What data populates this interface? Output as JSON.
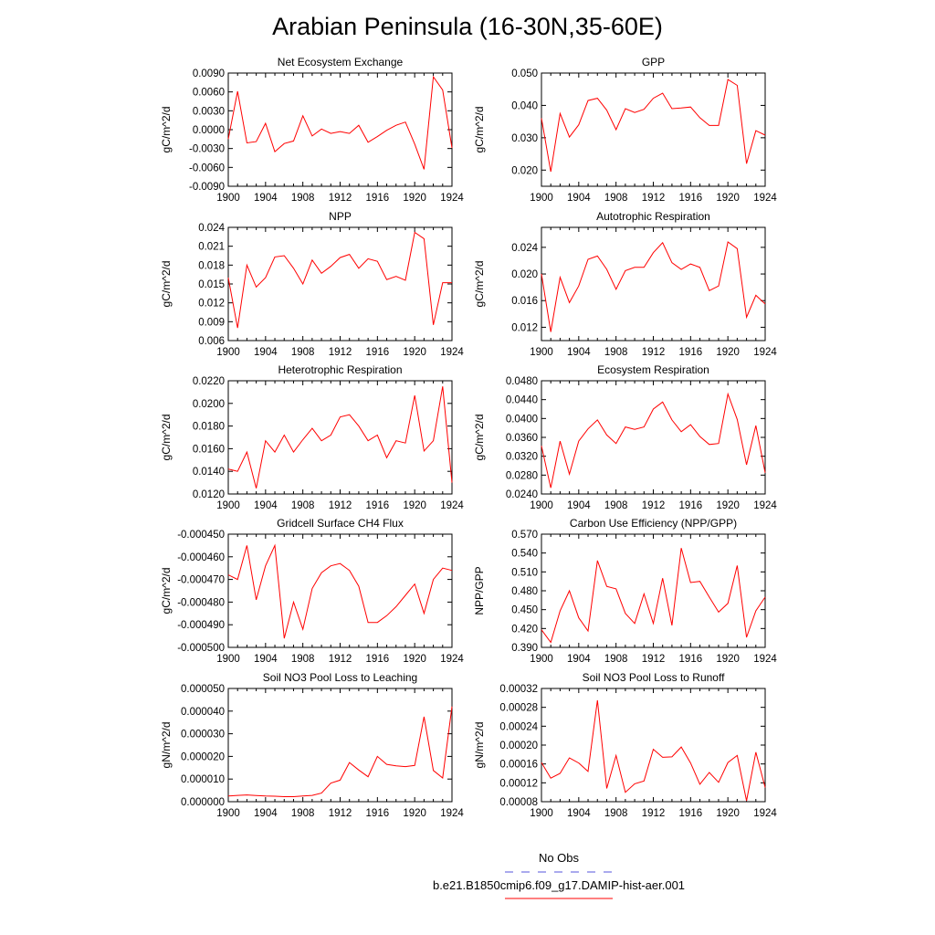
{
  "title": "Arabian Peninsula (16-30N,35-60E)",
  "legend": [
    {
      "label": "No Obs",
      "color": "#5555dd",
      "dash": true
    },
    {
      "label": "b.e21.B1850cmip6.f09_g17.DAMIP-hist-aer.001",
      "color": "#ff0000",
      "dash": false
    }
  ],
  "series_color": "#ff0000",
  "chart_data": [
    {
      "type": "line",
      "title": "Net Ecosystem Exchange",
      "ylabel": "gC/m^2/d",
      "ylim": [
        -0.009,
        0.009
      ],
      "yticks": [
        "0.0090",
        "0.0060",
        "0.0030",
        "0.0000",
        "-0.0030",
        "-0.0060",
        "-0.0090"
      ],
      "xlim": [
        1900,
        1924
      ],
      "xticks": [
        "1900",
        "1904",
        "1908",
        "1912",
        "1916",
        "1920",
        "1924"
      ],
      "x": [
        1900,
        1901,
        1902,
        1903,
        1904,
        1905,
        1906,
        1907,
        1908,
        1909,
        1910,
        1911,
        1912,
        1913,
        1914,
        1915,
        1916,
        1917,
        1918,
        1919,
        1920,
        1921,
        1922,
        1923,
        1924
      ],
      "values": [
        -0.0015,
        0.0061,
        -0.0021,
        -0.0019,
        0.001,
        -0.0035,
        -0.0022,
        -0.0018,
        0.0022,
        -0.001,
        0.0001,
        -0.0006,
        -0.0003,
        -0.0006,
        0.0007,
        -0.002,
        -0.0011,
        -0.0001,
        0.0007,
        0.0012,
        -0.0023,
        -0.0063,
        0.0084,
        0.0063,
        -0.0029
      ]
    },
    {
      "type": "line",
      "title": "GPP",
      "ylabel": "gC/m^2/d",
      "ylim": [
        0.015,
        0.05
      ],
      "yticks": [
        "0.050",
        "0.040",
        "0.030",
        "0.020"
      ],
      "xlim": [
        1900,
        1924
      ],
      "xticks": [
        "1900",
        "1904",
        "1908",
        "1912",
        "1916",
        "1920",
        "1924"
      ],
      "x": [
        1900,
        1901,
        1902,
        1903,
        1904,
        1905,
        1906,
        1907,
        1908,
        1909,
        1910,
        1911,
        1912,
        1913,
        1914,
        1915,
        1916,
        1917,
        1918,
        1919,
        1920,
        1921,
        1922,
        1923,
        1924
      ],
      "values": [
        0.036,
        0.0195,
        0.0375,
        0.0302,
        0.034,
        0.0415,
        0.0422,
        0.0385,
        0.0325,
        0.039,
        0.0378,
        0.0388,
        0.0422,
        0.0438,
        0.039,
        0.0392,
        0.0395,
        0.0362,
        0.0338,
        0.0338,
        0.048,
        0.0462,
        0.022,
        0.0322,
        0.0308
      ]
    },
    {
      "type": "line",
      "title": "NPP",
      "ylabel": "gC/m^2/d",
      "ylim": [
        0.006,
        0.024
      ],
      "yticks": [
        "0.024",
        "0.021",
        "0.018",
        "0.015",
        "0.012",
        "0.009",
        "0.006"
      ],
      "xlim": [
        1900,
        1924
      ],
      "xticks": [
        "1900",
        "1904",
        "1908",
        "1912",
        "1916",
        "1920",
        "1924"
      ],
      "x": [
        1900,
        1901,
        1902,
        1903,
        1904,
        1905,
        1906,
        1907,
        1908,
        1909,
        1910,
        1911,
        1912,
        1913,
        1914,
        1915,
        1916,
        1917,
        1918,
        1919,
        1920,
        1921,
        1922,
        1923,
        1924
      ],
      "values": [
        0.016,
        0.008,
        0.018,
        0.0145,
        0.016,
        0.0193,
        0.0195,
        0.0175,
        0.015,
        0.0188,
        0.0167,
        0.0178,
        0.0192,
        0.0197,
        0.0175,
        0.019,
        0.0186,
        0.0157,
        0.0162,
        0.0156,
        0.0232,
        0.0222,
        0.0085,
        0.0152,
        0.0152
      ]
    },
    {
      "type": "line",
      "title": "Autotrophic Respiration",
      "ylabel": "gC/m^2/d",
      "ylim": [
        0.01,
        0.027
      ],
      "yticks": [
        "0.024",
        "0.020",
        "0.016",
        "0.012"
      ],
      "xlim": [
        1900,
        1924
      ],
      "xticks": [
        "1900",
        "1904",
        "1908",
        "1912",
        "1916",
        "1920",
        "1924"
      ],
      "x": [
        1900,
        1901,
        1902,
        1903,
        1904,
        1905,
        1906,
        1907,
        1908,
        1909,
        1910,
        1911,
        1912,
        1913,
        1914,
        1915,
        1916,
        1917,
        1918,
        1919,
        1920,
        1921,
        1922,
        1923,
        1924
      ],
      "values": [
        0.02,
        0.0113,
        0.0195,
        0.0157,
        0.0182,
        0.0222,
        0.0227,
        0.0207,
        0.0177,
        0.0205,
        0.021,
        0.021,
        0.0232,
        0.0247,
        0.0217,
        0.0207,
        0.0215,
        0.021,
        0.0175,
        0.0182,
        0.0248,
        0.0238,
        0.0135,
        0.0168,
        0.0155
      ]
    },
    {
      "type": "line",
      "title": "Heterotrophic Respiration",
      "ylabel": "gC/m^2/d",
      "ylim": [
        0.012,
        0.022
      ],
      "yticks": [
        "0.0220",
        "0.0200",
        "0.0180",
        "0.0160",
        "0.0140",
        "0.0120"
      ],
      "xlim": [
        1900,
        1924
      ],
      "xticks": [
        "1900",
        "1904",
        "1908",
        "1912",
        "1916",
        "1920",
        "1924"
      ],
      "x": [
        1900,
        1901,
        1902,
        1903,
        1904,
        1905,
        1906,
        1907,
        1908,
        1909,
        1910,
        1911,
        1912,
        1913,
        1914,
        1915,
        1916,
        1917,
        1918,
        1919,
        1920,
        1921,
        1922,
        1923,
        1924
      ],
      "values": [
        0.0142,
        0.014,
        0.0157,
        0.0125,
        0.0167,
        0.0157,
        0.0172,
        0.0157,
        0.0168,
        0.0178,
        0.0167,
        0.0172,
        0.0188,
        0.019,
        0.018,
        0.0167,
        0.0172,
        0.0152,
        0.0167,
        0.0165,
        0.0207,
        0.0158,
        0.0167,
        0.0215,
        0.013
      ]
    },
    {
      "type": "line",
      "title": "Ecosystem Respiration",
      "ylabel": "gC/m^2/d",
      "ylim": [
        0.024,
        0.048
      ],
      "yticks": [
        "0.0480",
        "0.0440",
        "0.0400",
        "0.0360",
        "0.0320",
        "0.0280",
        "0.0240"
      ],
      "xlim": [
        1900,
        1924
      ],
      "xticks": [
        "1900",
        "1904",
        "1908",
        "1912",
        "1916",
        "1920",
        "1924"
      ],
      "x": [
        1900,
        1901,
        1902,
        1903,
        1904,
        1905,
        1906,
        1907,
        1908,
        1909,
        1910,
        1911,
        1912,
        1913,
        1914,
        1915,
        1916,
        1917,
        1918,
        1919,
        1920,
        1921,
        1922,
        1923,
        1924
      ],
      "values": [
        0.0342,
        0.0253,
        0.0352,
        0.0282,
        0.0352,
        0.0378,
        0.0397,
        0.0365,
        0.0347,
        0.0382,
        0.0377,
        0.0382,
        0.042,
        0.0435,
        0.0397,
        0.0372,
        0.0387,
        0.0362,
        0.0345,
        0.0347,
        0.0452,
        0.0398,
        0.0302,
        0.0385,
        0.0285
      ]
    },
    {
      "type": "line",
      "title": "Gridcell Surface CH4 Flux",
      "ylabel": "gC/m^2/d",
      "ylim": [
        -0.0005,
        -0.00045
      ],
      "yticks": [
        "-0.000450",
        "-0.000460",
        "-0.000470",
        "-0.000480",
        "-0.000490",
        "-0.000500"
      ],
      "xlim": [
        1900,
        1924
      ],
      "xticks": [
        "1900",
        "1904",
        "1908",
        "1912",
        "1916",
        "1920",
        "1924"
      ],
      "x": [
        1900,
        1901,
        1902,
        1903,
        1904,
        1905,
        1906,
        1907,
        1908,
        1909,
        1910,
        1911,
        1912,
        1913,
        1914,
        1915,
        1916,
        1917,
        1918,
        1919,
        1920,
        1921,
        1922,
        1923,
        1924
      ],
      "values": [
        -0.000468,
        -0.00047,
        -0.000455,
        -0.000479,
        -0.000464,
        -0.000455,
        -0.000496,
        -0.00048,
        -0.000492,
        -0.000474,
        -0.000467,
        -0.000464,
        -0.000463,
        -0.000466,
        -0.000473,
        -0.000489,
        -0.000489,
        -0.000486,
        -0.000482,
        -0.000477,
        -0.000472,
        -0.000485,
        -0.00047,
        -0.000465,
        -0.000466
      ]
    },
    {
      "type": "line",
      "title": "Carbon Use Efficiency (NPP/GPP)",
      "ylabel": "NPP/GPP",
      "ylim": [
        0.39,
        0.57
      ],
      "yticks": [
        "0.570",
        "0.540",
        "0.510",
        "0.480",
        "0.450",
        "0.420",
        "0.390"
      ],
      "xlim": [
        1900,
        1924
      ],
      "xticks": [
        "1900",
        "1904",
        "1908",
        "1912",
        "1916",
        "1920",
        "1924"
      ],
      "x": [
        1900,
        1901,
        1902,
        1903,
        1904,
        1905,
        1906,
        1907,
        1908,
        1909,
        1910,
        1911,
        1912,
        1913,
        1914,
        1915,
        1916,
        1917,
        1918,
        1919,
        1920,
        1921,
        1922,
        1923,
        1924
      ],
      "values": [
        0.418,
        0.398,
        0.448,
        0.48,
        0.437,
        0.416,
        0.528,
        0.487,
        0.483,
        0.444,
        0.428,
        0.475,
        0.428,
        0.5,
        0.425,
        0.548,
        0.493,
        0.495,
        0.47,
        0.446,
        0.46,
        0.52,
        0.406,
        0.448,
        0.47
      ]
    },
    {
      "type": "line",
      "title": "Soil NO3 Pool Loss to Leaching",
      "ylabel": "gN/m^2/d",
      "ylim": [
        0,
        5e-05
      ],
      "yticks": [
        "0.000050",
        "0.000040",
        "0.000030",
        "0.000020",
        "0.000010",
        "0.000000"
      ],
      "xlim": [
        1900,
        1924
      ],
      "xticks": [
        "1900",
        "1904",
        "1908",
        "1912",
        "1916",
        "1920",
        "1924"
      ],
      "x": [
        1900,
        1901,
        1902,
        1903,
        1904,
        1905,
        1906,
        1907,
        1908,
        1909,
        1910,
        1911,
        1912,
        1913,
        1914,
        1915,
        1916,
        1917,
        1918,
        1919,
        1920,
        1921,
        1922,
        1923,
        1924
      ],
      "values": [
        2.5e-06,
        2.8e-06,
        3e-06,
        2.7e-06,
        2.5e-06,
        2.4e-06,
        2.2e-06,
        2.2e-06,
        2.5e-06,
        2.8e-06,
        3.8e-06,
        8.2e-06,
        9.5e-06,
        1.73e-05,
        1.4e-05,
        1.1e-05,
        2e-05,
        1.65e-05,
        1.58e-05,
        1.55e-05,
        1.6e-05,
        3.75e-05,
        1.38e-05,
        1.05e-05,
        4.2e-05
      ]
    },
    {
      "type": "line",
      "title": "Soil NO3 Pool Loss to Runoff",
      "ylabel": "gN/m^2/d",
      "ylim": [
        8e-05,
        0.00032
      ],
      "yticks": [
        "0.00032",
        "0.00028",
        "0.00024",
        "0.00020",
        "0.00016",
        "0.00012",
        "0.00008"
      ],
      "xlim": [
        1900,
        1924
      ],
      "xticks": [
        "1900",
        "1904",
        "1908",
        "1912",
        "1916",
        "1920",
        "1924"
      ],
      "x": [
        1900,
        1901,
        1902,
        1903,
        1904,
        1905,
        1906,
        1907,
        1908,
        1909,
        1910,
        1911,
        1912,
        1913,
        1914,
        1915,
        1916,
        1917,
        1918,
        1919,
        1920,
        1921,
        1922,
        1923,
        1924
      ],
      "values": [
        0.000163,
        0.00013,
        0.00014,
        0.000173,
        0.000162,
        0.000144,
        0.000295,
        0.000108,
        0.000178,
        0.0001,
        0.000118,
        0.000124,
        0.000191,
        0.000174,
        0.000175,
        0.000196,
        0.000162,
        0.000117,
        0.000142,
        0.000121,
        0.000163,
        0.000178,
        8.2e-05,
        0.000185,
        0.00011
      ]
    }
  ]
}
